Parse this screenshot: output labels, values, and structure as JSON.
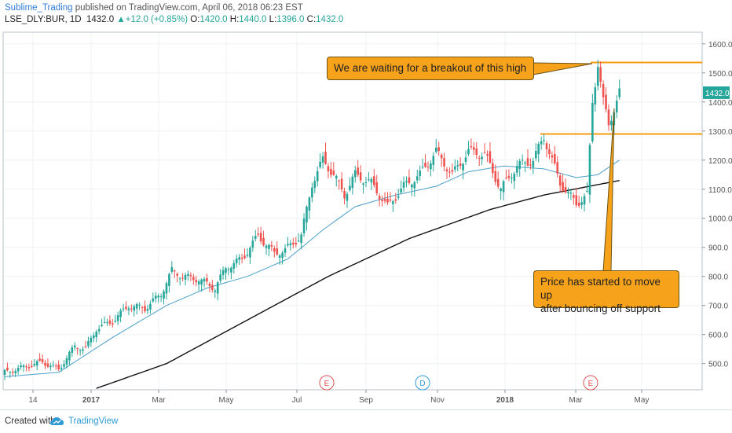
{
  "header": {
    "author": "Sublime_Trading",
    "published": "published on TradingView.com, April 06, 2018 06:23 EST",
    "symbol": "LSE_DLY:BUR, 1D",
    "last": "1432.0",
    "change": "+12.0 (+0.85%)",
    "open_label": "O:",
    "open": "1420.0",
    "high_label": "H:",
    "high": "1440.0",
    "low_label": "L:",
    "low": "1396.0",
    "close_label": "C:",
    "close": "1432.0"
  },
  "footer": {
    "created": "Created with",
    "brand": "TradingView"
  },
  "colors": {
    "up": "#26a69a",
    "down": "#ef5350",
    "ma50": "#4a9fc8",
    "ma200": "#111111",
    "note": "#f7a21b",
    "level": "#f39c12"
  },
  "annotations": {
    "breakout": "We are waiting for a breakout of this high",
    "support_line1": "Price has started to move up",
    "support_line2": "after bouncing off support"
  },
  "chart_data": {
    "type": "candlestick",
    "yticks": [
      500,
      600,
      700,
      800,
      900,
      1000,
      1100,
      1200,
      1300,
      1400,
      1500,
      1600
    ],
    "ytick_labels": [
      "500.0",
      "600.0",
      "700.0",
      "800.0",
      "900.0",
      "1000.0",
      "1100.0",
      "1200.0",
      "1300.0",
      "1400.0",
      "1500.0",
      "1600.0"
    ],
    "ylim": [
      410,
      1640
    ],
    "xtick_labels": [
      "14",
      "2017",
      "Mar",
      "May",
      "Jul",
      "Sep",
      "Nov",
      "2018",
      "Mar",
      "May"
    ],
    "last_price_label": "1432.0",
    "horizontal_levels": [
      1536,
      1290
    ],
    "event_markers": [
      "E",
      "D",
      "E"
    ],
    "price_path": [
      {
        "t": 0,
        "v": 470
      },
      {
        "t": 8,
        "v": 490
      },
      {
        "t": 14,
        "v": 505
      },
      {
        "t": 20,
        "v": 480
      },
      {
        "t": 26,
        "v": 560
      },
      {
        "t": 30,
        "v": 550
      },
      {
        "t": 34,
        "v": 620
      },
      {
        "t": 40,
        "v": 645
      },
      {
        "t": 46,
        "v": 700
      },
      {
        "t": 52,
        "v": 690
      },
      {
        "t": 58,
        "v": 740
      },
      {
        "t": 62,
        "v": 820
      },
      {
        "t": 66,
        "v": 800
      },
      {
        "t": 72,
        "v": 790
      },
      {
        "t": 78,
        "v": 760
      },
      {
        "t": 82,
        "v": 830
      },
      {
        "t": 88,
        "v": 860
      },
      {
        "t": 94,
        "v": 940
      },
      {
        "t": 100,
        "v": 880
      },
      {
        "t": 104,
        "v": 890
      },
      {
        "t": 110,
        "v": 940
      },
      {
        "t": 114,
        "v": 1120
      },
      {
        "t": 118,
        "v": 1200
      },
      {
        "t": 122,
        "v": 1150
      },
      {
        "t": 126,
        "v": 1080
      },
      {
        "t": 130,
        "v": 1150
      },
      {
        "t": 136,
        "v": 1120
      },
      {
        "t": 142,
        "v": 1040
      },
      {
        "t": 148,
        "v": 1110
      },
      {
        "t": 154,
        "v": 1150
      },
      {
        "t": 160,
        "v": 1230
      },
      {
        "t": 166,
        "v": 1150
      },
      {
        "t": 172,
        "v": 1230
      },
      {
        "t": 178,
        "v": 1220
      },
      {
        "t": 184,
        "v": 1100
      },
      {
        "t": 190,
        "v": 1180
      },
      {
        "t": 196,
        "v": 1200
      },
      {
        "t": 200,
        "v": 1280
      },
      {
        "t": 206,
        "v": 1120
      },
      {
        "t": 212,
        "v": 1050
      },
      {
        "t": 216,
        "v": 1080
      },
      {
        "t": 218,
        "v": 1400
      },
      {
        "t": 220,
        "v": 1536
      },
      {
        "t": 222,
        "v": 1400
      },
      {
        "t": 224,
        "v": 1320
      },
      {
        "t": 226,
        "v": 1380
      },
      {
        "t": 228,
        "v": 1432
      }
    ],
    "ma50_path": [
      {
        "t": 0,
        "v": 455
      },
      {
        "t": 20,
        "v": 470
      },
      {
        "t": 40,
        "v": 590
      },
      {
        "t": 60,
        "v": 700
      },
      {
        "t": 75,
        "v": 760
      },
      {
        "t": 90,
        "v": 800
      },
      {
        "t": 105,
        "v": 860
      },
      {
        "t": 118,
        "v": 960
      },
      {
        "t": 130,
        "v": 1040
      },
      {
        "t": 145,
        "v": 1080
      },
      {
        "t": 160,
        "v": 1110
      },
      {
        "t": 172,
        "v": 1160
      },
      {
        "t": 185,
        "v": 1180
      },
      {
        "t": 200,
        "v": 1170
      },
      {
        "t": 212,
        "v": 1140
      },
      {
        "t": 220,
        "v": 1150
      },
      {
        "t": 228,
        "v": 1200
      }
    ],
    "ma200_path": [
      {
        "t": 34,
        "v": 415
      },
      {
        "t": 60,
        "v": 500
      },
      {
        "t": 90,
        "v": 650
      },
      {
        "t": 120,
        "v": 800
      },
      {
        "t": 150,
        "v": 930
      },
      {
        "t": 180,
        "v": 1030
      },
      {
        "t": 200,
        "v": 1080
      },
      {
        "t": 228,
        "v": 1130
      }
    ]
  }
}
